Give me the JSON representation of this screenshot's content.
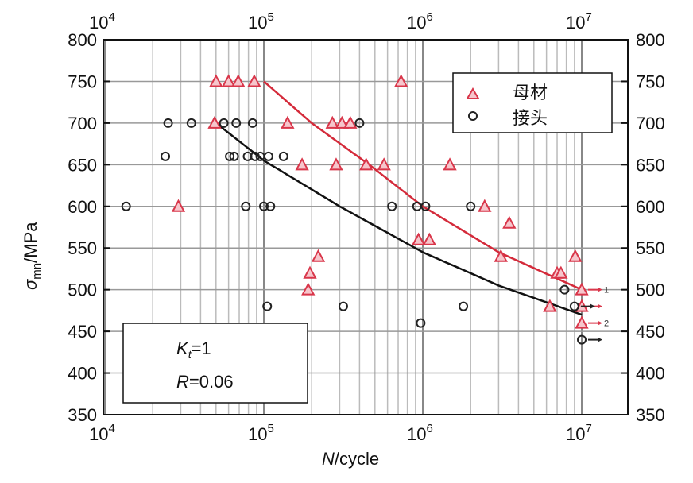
{
  "chart_data": {
    "type": "scatter",
    "xlabel_italic": "N",
    "xlabel_rest": "/cycle",
    "ylabel_symbol": "σ",
    "ylabel_sub": "mn",
    "ylabel_rest": "/MPa",
    "xscale": "log",
    "xlim": [
      10000,
      19500000
    ],
    "ylim": [
      350,
      800
    ],
    "x_ticks": [
      {
        "base": "10",
        "exp": "4",
        "value": 10000
      },
      {
        "base": "10",
        "exp": "5",
        "value": 100000
      },
      {
        "base": "10",
        "exp": "6",
        "value": 1000000
      },
      {
        "base": "10",
        "exp": "7",
        "value": 10000000
      }
    ],
    "y_ticks": [
      350,
      400,
      450,
      500,
      550,
      600,
      650,
      700,
      750,
      800
    ],
    "grid": true,
    "legend_placement": "top-right",
    "annotation": {
      "k_italic": "K",
      "k_sub": "t",
      "k_rest": "=1",
      "r_italic": "R",
      "r_rest": "=0.06"
    },
    "runout_labels": [
      {
        "text": "1",
        "y": 500
      },
      {
        "text": "2",
        "y": 460
      }
    ],
    "series": [
      {
        "name": "母材",
        "marker": "triangle",
        "color": "#d9364a",
        "points": [
          [
            50000,
            750
          ],
          [
            60000,
            750
          ],
          [
            69000,
            750
          ],
          [
            87000,
            750
          ],
          [
            730000,
            750
          ],
          [
            49000,
            700
          ],
          [
            141000,
            700
          ],
          [
            270000,
            700
          ],
          [
            310000,
            700
          ],
          [
            350000,
            700
          ],
          [
            174000,
            650
          ],
          [
            285000,
            650
          ],
          [
            440000,
            650
          ],
          [
            570000,
            650
          ],
          [
            1480000,
            650
          ],
          [
            29000,
            600
          ],
          [
            2450000,
            600
          ],
          [
            3500000,
            580
          ],
          [
            940000,
            560
          ],
          [
            1100000,
            560
          ],
          [
            220000,
            540
          ],
          [
            3100000,
            540
          ],
          [
            9100000,
            540
          ],
          [
            195000,
            520
          ],
          [
            7000000,
            520
          ],
          [
            7400000,
            520
          ],
          [
            190000,
            500
          ],
          [
            6300000,
            480
          ]
        ],
        "runouts": [
          [
            10000000,
            500
          ],
          [
            10000000,
            480
          ],
          [
            10000000,
            460
          ]
        ],
        "fit_curve": [
          [
            100000,
            750
          ],
          [
            200000,
            700
          ],
          [
            460000,
            650
          ],
          [
            1000000,
            600
          ],
          [
            3000000,
            545
          ],
          [
            10000000,
            500
          ]
        ]
      },
      {
        "name": "接头",
        "marker": "circle",
        "color": "#222222",
        "points": [
          [
            25000,
            700
          ],
          [
            35000,
            700
          ],
          [
            56000,
            700
          ],
          [
            67000,
            700
          ],
          [
            85000,
            700
          ],
          [
            400000,
            700
          ],
          [
            24000,
            660
          ],
          [
            61000,
            660
          ],
          [
            65000,
            660
          ],
          [
            79000,
            660
          ],
          [
            88000,
            660
          ],
          [
            95000,
            660
          ],
          [
            107000,
            660
          ],
          [
            133000,
            660
          ],
          [
            13600,
            600
          ],
          [
            77000,
            600
          ],
          [
            100000,
            600
          ],
          [
            110000,
            600
          ],
          [
            640000,
            600
          ],
          [
            920000,
            600
          ],
          [
            1040000,
            600
          ],
          [
            2000000,
            600
          ],
          [
            105000,
            480
          ],
          [
            316000,
            480
          ],
          [
            1800000,
            480
          ],
          [
            970000,
            460
          ],
          [
            7800000,
            500
          ]
        ],
        "runouts": [
          [
            9000000,
            480
          ],
          [
            10000000,
            440
          ]
        ],
        "fit_curve": [
          [
            50000,
            700
          ],
          [
            100000,
            655
          ],
          [
            300000,
            600
          ],
          [
            1000000,
            545
          ],
          [
            3000000,
            505
          ],
          [
            10000000,
            470
          ]
        ]
      }
    ]
  }
}
